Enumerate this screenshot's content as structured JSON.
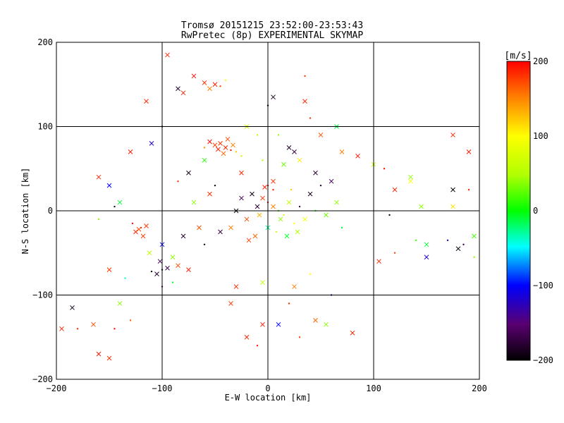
{
  "chart_data": {
    "type": "scatter",
    "title": "Tromsø 20151215 23:52:00-23:53:43",
    "subtitle": "RwPretec (8p) EXPERIMENTAL SKYMAP",
    "xlabel": "E-W location [km]",
    "ylabel": "N-S location [km]",
    "xlim": [
      -200,
      200
    ],
    "ylim": [
      -200,
      200
    ],
    "x_ticks": [
      "−200",
      "−100",
      "0",
      "100",
      "200"
    ],
    "y_ticks": [
      "−200",
      "−100",
      "0",
      "100",
      "200"
    ],
    "grid": true,
    "colorbar": {
      "label": "[m/s]",
      "range": [
        -200,
        200
      ],
      "ticks": [
        "200",
        "100",
        "0",
        "−100",
        "−200"
      ]
    },
    "markers": [
      "cross",
      "dot"
    ],
    "points": [
      {
        "x": -40,
        "y": 75,
        "v": 185
      },
      {
        "x": -45,
        "y": 80,
        "v": 180
      },
      {
        "x": -35,
        "y": 72,
        "v": 190
      },
      {
        "x": -50,
        "y": 78,
        "v": 175
      },
      {
        "x": -42,
        "y": 68,
        "v": 160
      },
      {
        "x": -30,
        "y": 70,
        "v": 120
      },
      {
        "x": -55,
        "y": 82,
        "v": 195
      },
      {
        "x": -38,
        "y": 85,
        "v": 170
      },
      {
        "x": -25,
        "y": 65,
        "v": 60
      },
      {
        "x": -47,
        "y": 73,
        "v": 188
      },
      {
        "x": -33,
        "y": 78,
        "v": 150
      },
      {
        "x": -60,
        "y": 75,
        "v": 140
      },
      {
        "x": -50,
        "y": 150,
        "v": 190
      },
      {
        "x": -60,
        "y": 152,
        "v": 180
      },
      {
        "x": -45,
        "y": 148,
        "v": 170
      },
      {
        "x": -70,
        "y": 160,
        "v": 195
      },
      {
        "x": -80,
        "y": 140,
        "v": 185
      },
      {
        "x": -40,
        "y": 155,
        "v": 90
      },
      {
        "x": -85,
        "y": 145,
        "v": -180
      },
      {
        "x": -55,
        "y": 145,
        "v": 150
      },
      {
        "x": -120,
        "y": -20,
        "v": 190
      },
      {
        "x": -125,
        "y": -25,
        "v": 185
      },
      {
        "x": -115,
        "y": -18,
        "v": 180
      },
      {
        "x": -128,
        "y": -15,
        "v": 195
      },
      {
        "x": -118,
        "y": -30,
        "v": 175
      },
      {
        "x": -122,
        "y": -22,
        "v": 170
      },
      {
        "x": -100,
        "y": -70,
        "v": -190
      },
      {
        "x": -105,
        "y": -75,
        "v": -180
      },
      {
        "x": -95,
        "y": -68,
        "v": -170
      },
      {
        "x": -110,
        "y": -72,
        "v": -195
      },
      {
        "x": -102,
        "y": -60,
        "v": -160
      },
      {
        "x": -90,
        "y": -55,
        "v": 40
      },
      {
        "x": -100,
        "y": -90,
        "v": -150
      },
      {
        "x": -85,
        "y": -65,
        "v": 170
      },
      {
        "x": -112,
        "y": -50,
        "v": 60
      },
      {
        "x": -180,
        "y": -140,
        "v": 185
      },
      {
        "x": -160,
        "y": -170,
        "v": 190
      },
      {
        "x": -150,
        "y": -175,
        "v": 180
      },
      {
        "x": -145,
        "y": -140,
        "v": 195
      },
      {
        "x": -165,
        "y": -135,
        "v": 170
      },
      {
        "x": -185,
        "y": -115,
        "v": -190
      },
      {
        "x": -130,
        "y": -130,
        "v": 160
      },
      {
        "x": -140,
        "y": -110,
        "v": 40
      },
      {
        "x": -195,
        "y": -140,
        "v": 185
      },
      {
        "x": 0,
        "y": 10,
        "v": 190
      },
      {
        "x": -5,
        "y": 15,
        "v": 180
      },
      {
        "x": 5,
        "y": 5,
        "v": 150
      },
      {
        "x": 10,
        "y": 0,
        "v": 20
      },
      {
        "x": -10,
        "y": 5,
        "v": -180
      },
      {
        "x": -15,
        "y": 20,
        "v": -190
      },
      {
        "x": 15,
        "y": -5,
        "v": 80
      },
      {
        "x": 20,
        "y": 10,
        "v": 60
      },
      {
        "x": -20,
        "y": -10,
        "v": 170
      },
      {
        "x": 25,
        "y": -15,
        "v": 100
      },
      {
        "x": -25,
        "y": 15,
        "v": -160
      },
      {
        "x": 0,
        "y": -20,
        "v": -30
      },
      {
        "x": 5,
        "y": 25,
        "v": 185
      },
      {
        "x": 12,
        "y": -10,
        "v": 40
      },
      {
        "x": -8,
        "y": -5,
        "v": 130
      },
      {
        "x": 30,
        "y": 5,
        "v": -170
      },
      {
        "x": 35,
        "y": -10,
        "v": 90
      },
      {
        "x": 40,
        "y": 20,
        "v": -185
      },
      {
        "x": 45,
        "y": 0,
        "v": 10
      },
      {
        "x": -30,
        "y": 0,
        "v": -195
      },
      {
        "x": -35,
        "y": -20,
        "v": 150
      },
      {
        "x": 0,
        "y": 30,
        "v": 195
      },
      {
        "x": 5,
        "y": 35,
        "v": 180
      },
      {
        "x": -3,
        "y": 28,
        "v": 188
      },
      {
        "x": 8,
        "y": -25,
        "v": 70
      },
      {
        "x": -12,
        "y": -30,
        "v": 160
      },
      {
        "x": 18,
        "y": -30,
        "v": -10
      },
      {
        "x": 22,
        "y": 25,
        "v": 120
      },
      {
        "x": -18,
        "y": -35,
        "v": 175
      },
      {
        "x": 28,
        "y": -25,
        "v": 50
      },
      {
        "x": 50,
        "y": 30,
        "v": -180
      },
      {
        "x": 55,
        "y": -5,
        "v": 30
      },
      {
        "x": 60,
        "y": 35,
        "v": -160
      },
      {
        "x": -50,
        "y": 30,
        "v": -190
      },
      {
        "x": -55,
        "y": 20,
        "v": 180
      },
      {
        "x": -45,
        "y": -25,
        "v": -170
      },
      {
        "x": -60,
        "y": -40,
        "v": -185
      },
      {
        "x": -65,
        "y": -20,
        "v": 170
      },
      {
        "x": -70,
        "y": 10,
        "v": 40
      },
      {
        "x": 0,
        "y": 125,
        "v": -195
      },
      {
        "x": 5,
        "y": 135,
        "v": -190
      },
      {
        "x": -20,
        "y": 100,
        "v": 70
      },
      {
        "x": 10,
        "y": 90,
        "v": 40
      },
      {
        "x": 20,
        "y": 75,
        "v": -180
      },
      {
        "x": 25,
        "y": 70,
        "v": -170
      },
      {
        "x": -10,
        "y": 90,
        "v": 60
      },
      {
        "x": 35,
        "y": 130,
        "v": 185
      },
      {
        "x": 50,
        "y": 90,
        "v": 170
      },
      {
        "x": -5,
        "y": 60,
        "v": 50
      },
      {
        "x": 15,
        "y": 55,
        "v": 30
      },
      {
        "x": 30,
        "y": 60,
        "v": 110
      },
      {
        "x": -100,
        "y": 100,
        "v": -195
      },
      {
        "x": -110,
        "y": 80,
        "v": -120
      },
      {
        "x": -115,
        "y": 130,
        "v": 185
      },
      {
        "x": -145,
        "y": 5,
        "v": -195
      },
      {
        "x": -150,
        "y": 30,
        "v": -100
      },
      {
        "x": -160,
        "y": 40,
        "v": 185
      },
      {
        "x": -160,
        "y": -10,
        "v": 40
      },
      {
        "x": -140,
        "y": 10,
        "v": -10
      },
      {
        "x": -150,
        "y": -70,
        "v": 180
      },
      {
        "x": -135,
        "y": -80,
        "v": -40
      },
      {
        "x": -100,
        "y": -40,
        "v": -100
      },
      {
        "x": -80,
        "y": -30,
        "v": -180
      },
      {
        "x": -90,
        "y": -85,
        "v": -10
      },
      {
        "x": -75,
        "y": -70,
        "v": 190
      },
      {
        "x": 100,
        "y": 55,
        "v": 60
      },
      {
        "x": 110,
        "y": 50,
        "v": 190
      },
      {
        "x": 120,
        "y": 25,
        "v": 185
      },
      {
        "x": 135,
        "y": 40,
        "v": 40
      },
      {
        "x": 140,
        "y": -35,
        "v": 20
      },
      {
        "x": 150,
        "y": -40,
        "v": -10
      },
      {
        "x": 150,
        "y": -55,
        "v": -120
      },
      {
        "x": 170,
        "y": -35,
        "v": -130
      },
      {
        "x": 175,
        "y": 25,
        "v": -195
      },
      {
        "x": 180,
        "y": -45,
        "v": -190
      },
      {
        "x": 185,
        "y": -40,
        "v": -170
      },
      {
        "x": 190,
        "y": 70,
        "v": 190
      },
      {
        "x": 195,
        "y": -30,
        "v": 20
      },
      {
        "x": 195,
        "y": -55,
        "v": 40
      },
      {
        "x": 175,
        "y": 90,
        "v": 185
      },
      {
        "x": 135,
        "y": 35,
        "v": 100
      },
      {
        "x": 115,
        "y": -5,
        "v": -195
      },
      {
        "x": 145,
        "y": 5,
        "v": 40
      },
      {
        "x": 175,
        "y": 5,
        "v": 110
      },
      {
        "x": 190,
        "y": 25,
        "v": 185
      },
      {
        "x": 85,
        "y": 65,
        "v": 190
      },
      {
        "x": 70,
        "y": 70,
        "v": 150
      },
      {
        "x": 60,
        "y": -100,
        "v": -120
      },
      {
        "x": 80,
        "y": -145,
        "v": 185
      },
      {
        "x": 45,
        "y": -130,
        "v": 160
      },
      {
        "x": 30,
        "y": -150,
        "v": 170
      },
      {
        "x": 10,
        "y": -135,
        "v": -100
      },
      {
        "x": -5,
        "y": -135,
        "v": 190
      },
      {
        "x": 20,
        "y": -110,
        "v": 185
      },
      {
        "x": 55,
        "y": -135,
        "v": 40
      },
      {
        "x": 105,
        "y": -60,
        "v": 185
      },
      {
        "x": 120,
        "y": -50,
        "v": 170
      },
      {
        "x": -35,
        "y": -110,
        "v": 180
      },
      {
        "x": -20,
        "y": -150,
        "v": 185
      },
      {
        "x": -10,
        "y": -160,
        "v": 190
      },
      {
        "x": -30,
        "y": -90,
        "v": 185
      },
      {
        "x": 25,
        "y": -90,
        "v": 150
      },
      {
        "x": 40,
        "y": -75,
        "v": 100
      },
      {
        "x": -5,
        "y": -85,
        "v": 60
      },
      {
        "x": 65,
        "y": 10,
        "v": 40
      },
      {
        "x": 70,
        "y": -20,
        "v": -10
      },
      {
        "x": 45,
        "y": 45,
        "v": -180
      },
      {
        "x": -25,
        "y": 45,
        "v": 185
      },
      {
        "x": -85,
        "y": 35,
        "v": 180
      },
      {
        "x": -75,
        "y": 45,
        "v": -190
      },
      {
        "x": -60,
        "y": 60,
        "v": 10
      },
      {
        "x": 40,
        "y": 110,
        "v": 185
      },
      {
        "x": 65,
        "y": 100,
        "v": -10
      },
      {
        "x": -130,
        "y": 70,
        "v": 190
      },
      {
        "x": 35,
        "y": 160,
        "v": 180
      },
      {
        "x": -95,
        "y": 185,
        "v": 185
      }
    ]
  }
}
